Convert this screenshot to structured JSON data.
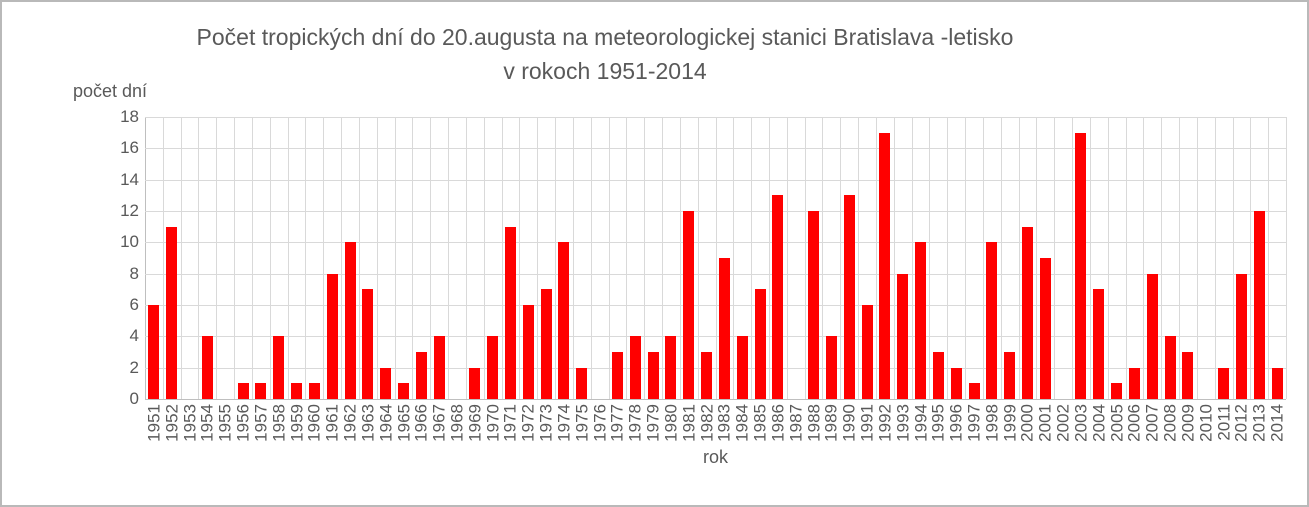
{
  "chart_data": {
    "type": "bar",
    "title": "Počet tropických dní do 20.augusta na meteorologickej stanici Bratislava -letisko",
    "subtitle": "v rokoch 1951-2014",
    "xlabel": "rok",
    "ylabel": "počet dní",
    "ylim": [
      0,
      18
    ],
    "ytick_step": 2,
    "yticks": [
      0,
      2,
      4,
      6,
      8,
      10,
      12,
      14,
      16,
      18
    ],
    "grid": true,
    "legend_position": "none",
    "categories": [
      "1951",
      "1952",
      "1953",
      "1954",
      "1955",
      "1956",
      "1957",
      "1958",
      "1959",
      "1960",
      "1961",
      "1962",
      "1963",
      "1964",
      "1965",
      "1966",
      "1967",
      "1968",
      "1969",
      "1970",
      "1971",
      "1972",
      "1973",
      "1974",
      "1975",
      "1976",
      "1977",
      "1978",
      "1979",
      "1980",
      "1981",
      "1982",
      "1983",
      "1984",
      "1985",
      "1986",
      "1987",
      "1988",
      "1989",
      "1990",
      "1991",
      "1992",
      "1993",
      "1994",
      "1995",
      "1996",
      "1997",
      "1998",
      "1999",
      "2000",
      "2001",
      "2002",
      "2003",
      "2004",
      "2005",
      "2006",
      "2007",
      "2008",
      "2009",
      "2010",
      "2011",
      "2012",
      "2013",
      "2014"
    ],
    "values": [
      6,
      11,
      0,
      4,
      0,
      1,
      1,
      4,
      1,
      1,
      8,
      10,
      7,
      2,
      1,
      3,
      4,
      0,
      2,
      4,
      11,
      6,
      7,
      10,
      2,
      0,
      3,
      4,
      3,
      4,
      12,
      3,
      9,
      4,
      7,
      13,
      0,
      12,
      4,
      13,
      6,
      17,
      8,
      10,
      3,
      2,
      1,
      10,
      3,
      11,
      9,
      0,
      17,
      7,
      1,
      2,
      8,
      4,
      3,
      0,
      2,
      8,
      12,
      2
    ]
  },
  "colors": {
    "bar": "#ff0000",
    "text": "#595959",
    "gridline": "#d9d9d9",
    "axis_line": "#bfbfbf",
    "frame_border": "#b9b9b9",
    "background": "#ffffff"
  }
}
